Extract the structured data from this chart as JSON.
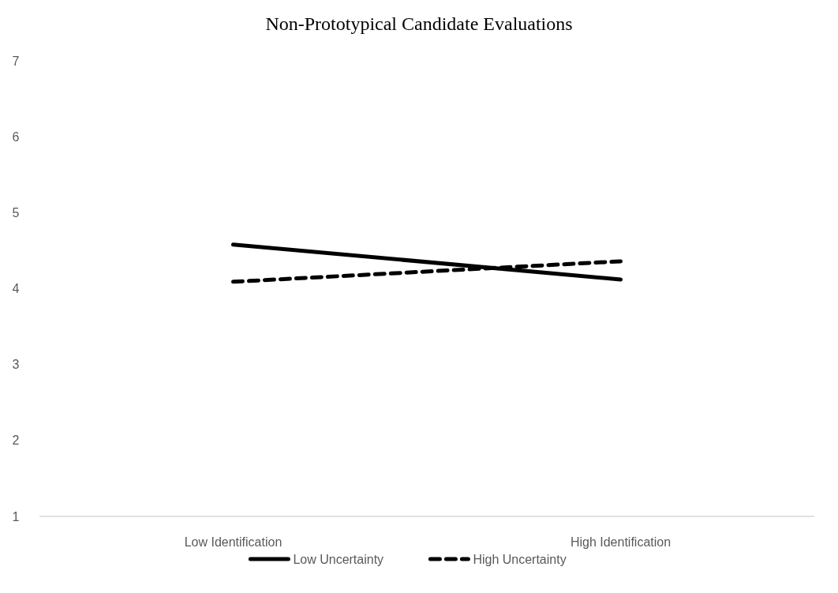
{
  "chart_data": {
    "type": "line",
    "title": "Non-Prototypical Candidate Evaluations",
    "categories": [
      "Low Identification",
      "High Identification"
    ],
    "series": [
      {
        "name": "Low Uncertainty",
        "color": "#000000",
        "values": [
          4.58,
          4.12
        ],
        "line_style": "solid"
      },
      {
        "name": "High Uncertainty",
        "color": "#000000",
        "values": [
          4.09,
          4.36
        ],
        "line_style": "dashed"
      }
    ],
    "ylim": [
      1,
      7
    ],
    "yticks": [
      1,
      2,
      3,
      4,
      5,
      6,
      7
    ],
    "legend": "bottom",
    "marker": "none"
  }
}
